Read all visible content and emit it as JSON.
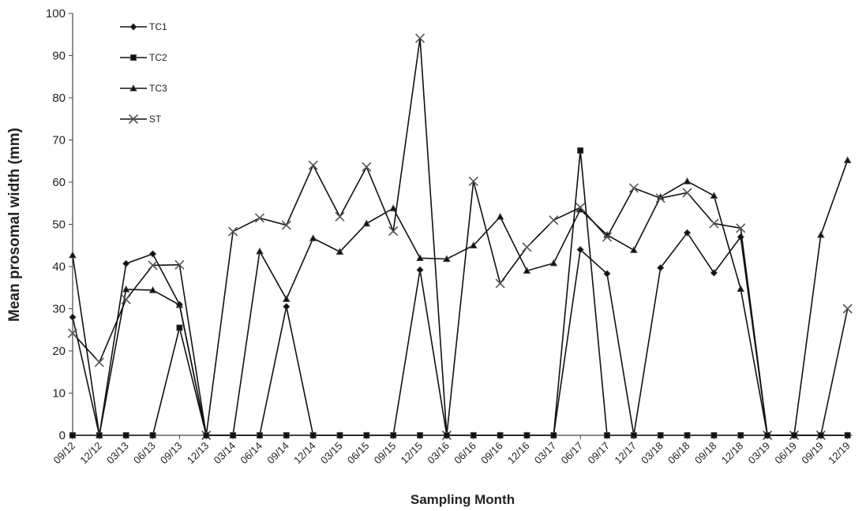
{
  "chart_data": {
    "type": "line",
    "xlabel": "Sampling Month",
    "ylabel": "Mean prosomal width (mm)",
    "ylim": [
      0,
      100
    ],
    "yticks": [
      0,
      10,
      20,
      30,
      40,
      50,
      60,
      70,
      80,
      90,
      100
    ],
    "legend_position": "top-left",
    "grid": false,
    "categories": [
      "09/12",
      "12/12",
      "03/13",
      "06/13",
      "09/13",
      "12/13",
      "03/14",
      "06/14",
      "09/14",
      "12/14",
      "03/15",
      "06/15",
      "09/15",
      "12/15",
      "03/16",
      "06/16",
      "09/16",
      "12/16",
      "03/17",
      "06/17",
      "09/17",
      "12/17",
      "03/18",
      "06/18",
      "09/18",
      "12/18",
      "03/19",
      "06/19",
      "09/19",
      "12/19"
    ],
    "series": [
      {
        "name": "TC1",
        "marker": "diamond",
        "values": [
          28,
          0,
          40.7,
          43,
          31,
          0,
          0,
          0,
          30.5,
          0,
          0,
          0,
          0,
          39.2,
          0,
          0,
          0,
          0,
          0,
          44,
          38.3,
          0,
          39.7,
          48,
          38.5,
          47,
          0,
          0,
          0,
          0
        ]
      },
      {
        "name": "TC2",
        "marker": "square",
        "values": [
          0,
          0,
          0,
          0,
          25.5,
          0,
          0,
          0,
          0,
          0,
          0,
          0,
          0,
          0,
          0,
          0,
          0,
          0,
          0,
          67.5,
          0,
          0,
          0,
          0,
          0,
          0,
          0,
          0,
          0,
          0
        ]
      },
      {
        "name": "TC3",
        "marker": "triangle",
        "values": [
          42.7,
          0,
          34.6,
          34.4,
          30.9,
          0,
          0,
          43.6,
          32.3,
          46.7,
          43.5,
          50.2,
          53.8,
          42,
          41.8,
          45,
          51.8,
          39,
          40.8,
          53.5,
          47.5,
          43.9,
          56.5,
          60.2,
          56.8,
          34.7,
          0,
          0,
          47.5,
          65.2
        ]
      },
      {
        "name": "ST",
        "marker": "x",
        "values": [
          24.2,
          17.3,
          32.2,
          40.3,
          40.4,
          0,
          48.3,
          51.5,
          49.8,
          64,
          51.8,
          63.6,
          48.4,
          94.1,
          0,
          60.2,
          36,
          44.6,
          51,
          54,
          47,
          58.6,
          56.2,
          57.5,
          50.2,
          49.1,
          0,
          0,
          0,
          30
        ]
      }
    ]
  }
}
